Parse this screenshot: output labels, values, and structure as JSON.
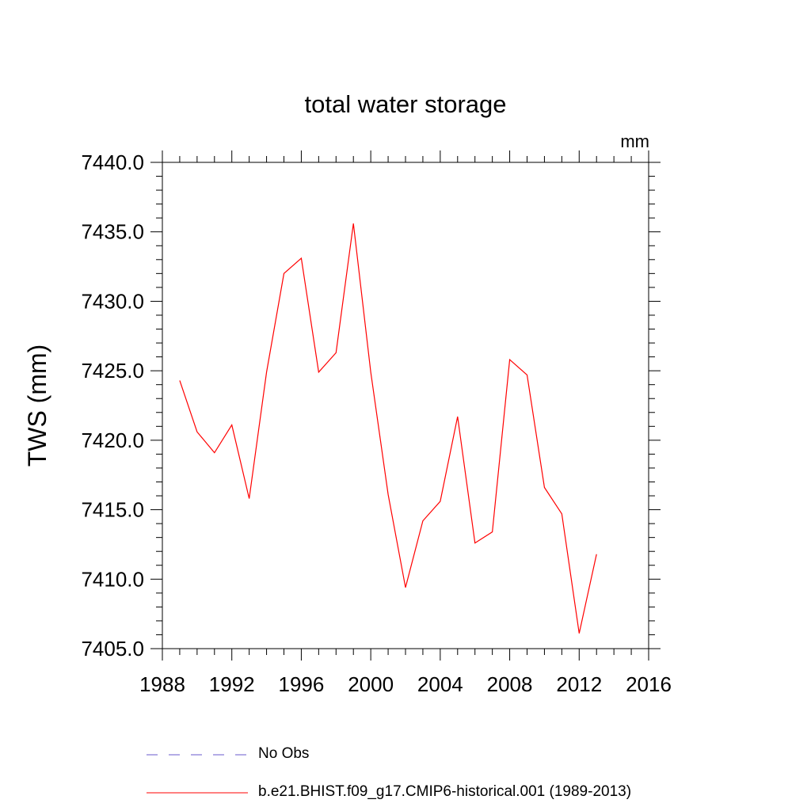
{
  "chart_data": {
    "type": "line",
    "title": "total water storage",
    "units_label": "mm",
    "ylabel": "TWS  (mm)",
    "xlabel": "",
    "xlim": [
      1988,
      2016
    ],
    "ylim": [
      7405.0,
      7440.0
    ],
    "x_ticks": [
      1988,
      1992,
      1996,
      2000,
      2004,
      2008,
      2012,
      2016
    ],
    "y_ticks": [
      "7405.0",
      "7410.0",
      "7415.0",
      "7420.0",
      "7425.0",
      "7430.0",
      "7435.0",
      "7440.0"
    ],
    "series": [
      {
        "name": "No Obs",
        "color": "#6a5acd",
        "dash": true,
        "x": [],
        "values": []
      },
      {
        "name": "b.e21.BHIST.f09_g17.CMIP6-historical.001 (1989-2013)",
        "color": "#ff0000",
        "dash": false,
        "x": [
          1989,
          1990,
          1991,
          1992,
          1993,
          1994,
          1995,
          1996,
          1997,
          1998,
          1999,
          2000,
          2001,
          2002,
          2003,
          2004,
          2005,
          2006,
          2007,
          2008,
          2009,
          2010,
          2011,
          2012,
          2013
        ],
        "values": [
          7424.3,
          7420.6,
          7419.1,
          7421.1,
          7415.8,
          7424.9,
          7432.0,
          7433.1,
          7424.9,
          7426.3,
          7435.6,
          7424.9,
          7416.1,
          7409.4,
          7414.2,
          7415.6,
          7421.7,
          7412.6,
          7413.4,
          7425.8,
          7424.7,
          7416.6,
          7414.7,
          7406.1,
          7411.8
        ]
      }
    ],
    "legend": {
      "no_obs_label": "No Obs",
      "model_label": "b.e21.BHIST.f09_g17.CMIP6-historical.001 (1989-2013)"
    }
  }
}
